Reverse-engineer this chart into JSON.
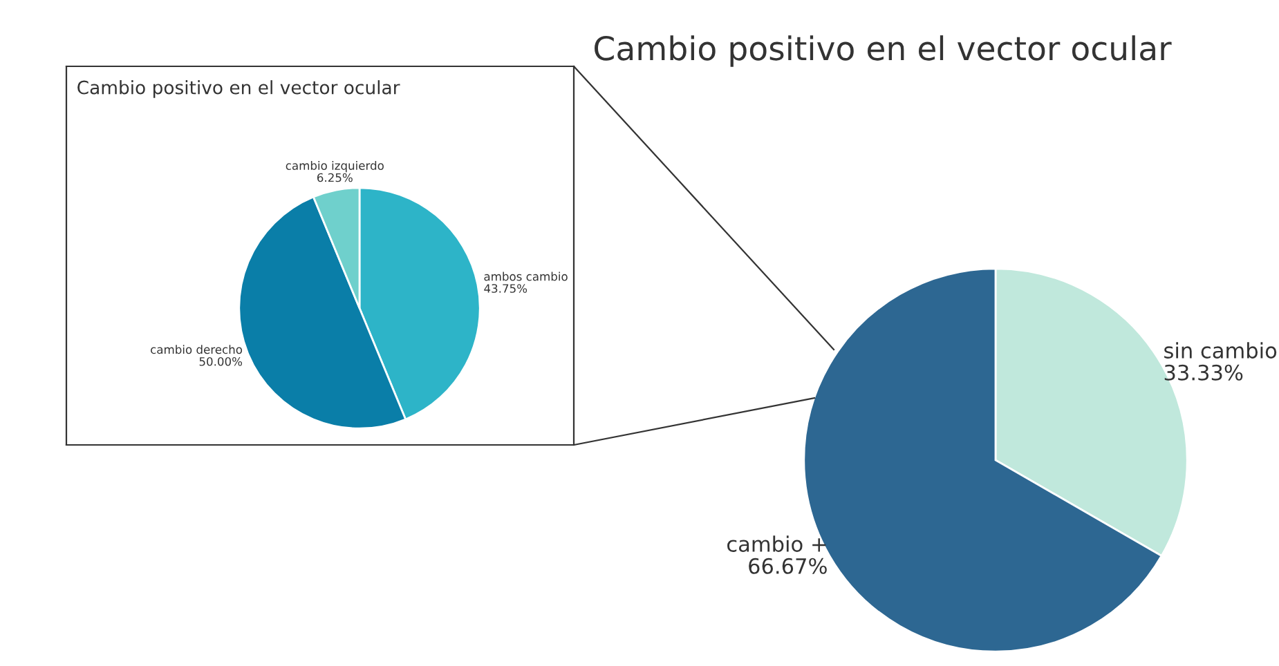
{
  "chart_data": [
    {
      "type": "pie",
      "title": "Cambio positivo en el vector ocular",
      "categories": [
        "sin cambio",
        "cambio +"
      ],
      "values": [
        33.33,
        66.67
      ],
      "colors": [
        "#c0e8dc",
        "#2d6792"
      ],
      "value_labels": [
        "33.33%",
        "66.67%"
      ]
    },
    {
      "type": "pie",
      "title": "Cambio positivo en el vector ocular",
      "categories": [
        "ambos cambio",
        "cambio derecho",
        "cambio izquierdo"
      ],
      "values": [
        43.75,
        50.0,
        6.25
      ],
      "colors": [
        "#2db4c8",
        "#0a7ea8",
        "#6fd0cc"
      ],
      "value_labels": [
        "43.75%",
        "50.00%",
        "6.25%"
      ]
    }
  ]
}
